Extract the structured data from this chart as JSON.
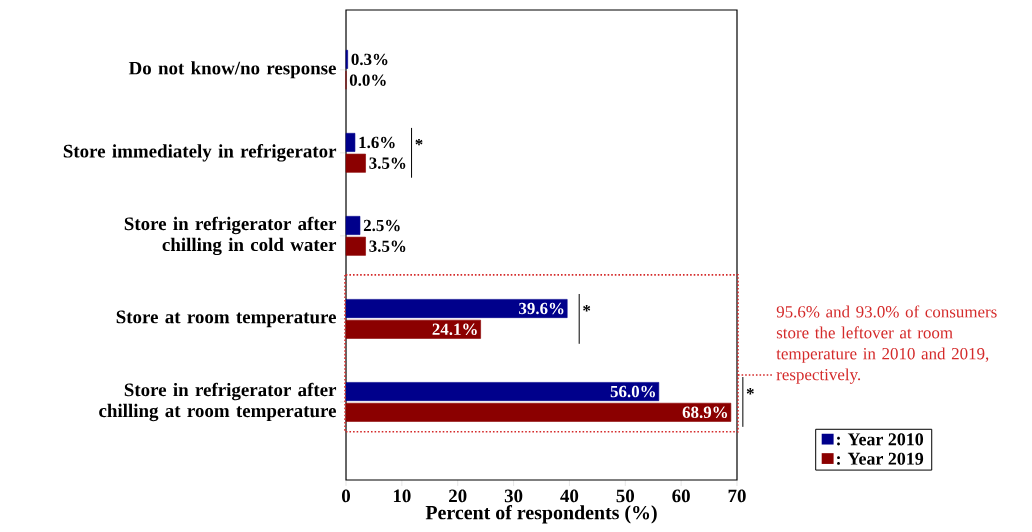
{
  "chart_data": {
    "type": "bar",
    "orientation": "horizontal",
    "categories": [
      "Do not know/no response",
      "Store immediately in refrigerator",
      "Store in refrigerator after chilling in cold water",
      "Store at room temperature",
      "Store in refrigerator after chilling at room temperature"
    ],
    "series": [
      {
        "name": ": Year 2010",
        "color": "#00008b",
        "values": [
          0.3,
          1.6,
          2.5,
          39.6,
          56.0
        ],
        "value_labels": [
          "0.3%",
          "1.6%",
          "2.5%",
          "39.6%",
          "56.0%"
        ]
      },
      {
        "name": ": Year 2019",
        "color": "#8b0000",
        "values": [
          0.0,
          3.5,
          3.5,
          24.1,
          68.9
        ],
        "value_labels": [
          "0.0%",
          "3.5%",
          "3.5%",
          "24.1%",
          "68.9%"
        ]
      }
    ],
    "xlabel": "Percent of respondents (%)",
    "xlim": [
      0,
      70
    ],
    "xticks": [
      0,
      10,
      20,
      30,
      40,
      50,
      60,
      70
    ],
    "legend": "bottom right",
    "grid": false,
    "annotations": [
      {
        "text": "*",
        "x": 3.5,
        "y": "Store immediately in refrigerator"
      },
      {
        "text": "*",
        "x": 39.6,
        "y": "Store at room temperature"
      },
      {
        "text": "*",
        "x": 68.9,
        "y": "Store in refrigerator after chilling at room temperature"
      },
      "95.6% and 93.0% of consumers store the leftover at room temperature in 2010 and 2019, respectively."
    ]
  }
}
